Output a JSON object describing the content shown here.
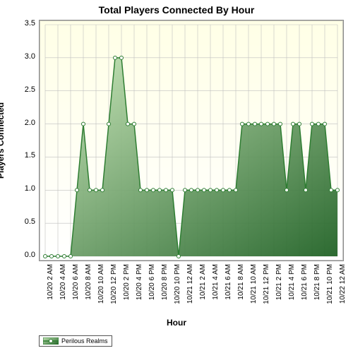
{
  "chart": {
    "type": "area",
    "title": "Total Players Connected By Hour",
    "title_fontsize": 14,
    "xlabel": "Hour",
    "ylabel": "Players Connected",
    "label_fontsize": 12,
    "background_color": "#ffffff",
    "plot_bg_top": "#ffffe6",
    "plot_bg_bottom": "#ffffff",
    "grid_color": "#bfbfbf",
    "axis_color": "#8a8a8a",
    "ylim": [
      0,
      3.5
    ],
    "ytick_step": 0.5,
    "yticks": [
      "0.0",
      "0.5",
      "1.0",
      "1.5",
      "2.0",
      "2.5",
      "3.0",
      "3.5"
    ],
    "xticks": [
      "10/20 2 AM",
      "10/20 4 AM",
      "10/20 6 AM",
      "10/20 8 AM",
      "10/20 10 AM",
      "10/20 12 PM",
      "10/20 2 PM",
      "10/20 4 PM",
      "10/20 6 PM",
      "10/20 8 PM",
      "10/20 10 PM",
      "10/21 12 AM",
      "10/21 2 AM",
      "10/21 4 AM",
      "10/21 6 AM",
      "10/21 8 AM",
      "10/21 10 AM",
      "10/21 12 PM",
      "10/21 2 PM",
      "10/21 4 PM",
      "10/21 6 PM",
      "10/21 8 PM",
      "10/21 10 PM",
      "10/22 12 AM"
    ],
    "series": {
      "name": "Perilous Realms",
      "line_color": "#2e7d32",
      "fill_top": "#c7e6b8",
      "fill_bottom": "#1b5e20",
      "marker_fill": "#ffffff",
      "marker_stroke": "#2e7d32",
      "marker_radius": 2.5,
      "line_width": 1.5,
      "values": [
        0,
        0,
        0,
        0,
        0,
        1,
        2,
        1,
        1,
        1,
        2,
        3,
        3,
        2,
        2,
        1,
        1,
        1,
        1,
        1,
        1,
        0,
        1,
        1,
        1,
        1,
        1,
        1,
        1,
        1,
        1,
        2,
        2,
        2,
        2,
        2,
        2,
        2,
        1,
        2,
        2,
        1,
        2,
        2,
        2,
        1,
        1
      ]
    },
    "legend_label": "Perilous Realms"
  }
}
